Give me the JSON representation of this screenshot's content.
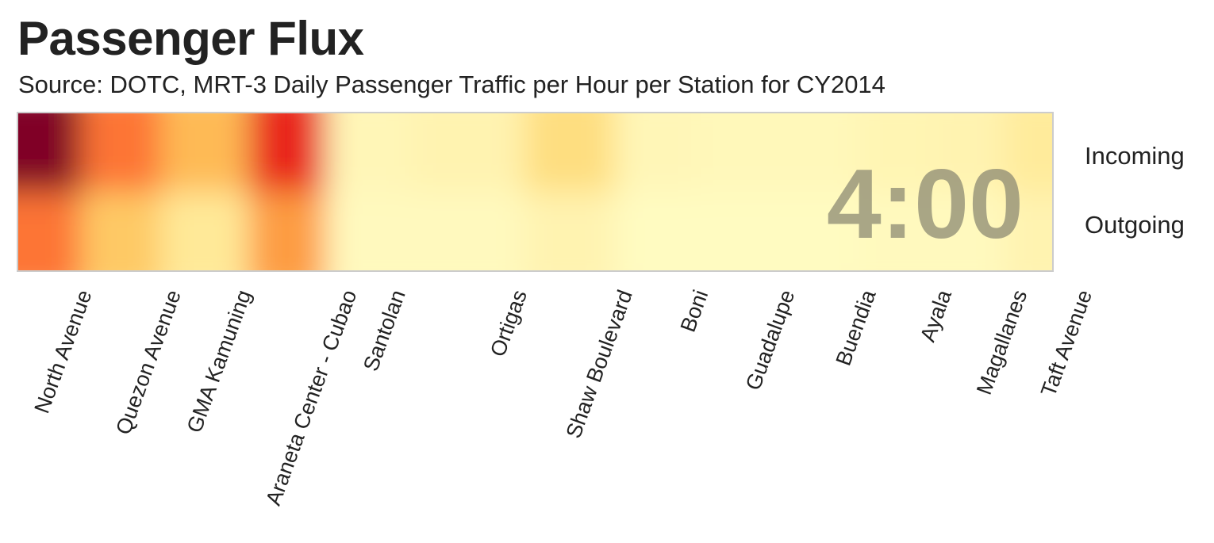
{
  "chart_data": {
    "type": "heatmap",
    "title": "Passenger Flux",
    "subtitle": "Source: DOTC, MRT-3 Daily Passenger Traffic per Hour per Station for CY2014",
    "time_label": "4:00",
    "rows": [
      "Incoming",
      "Outgoing"
    ],
    "categories": [
      "North Avenue",
      "Quezon Avenue",
      "GMA Kamuning",
      "Araneta Center - Cubao",
      "Santolan",
      "Ortigas",
      "Shaw Boulevard",
      "Boni",
      "Guadalupe",
      "Buendia",
      "Ayala",
      "Magallanes",
      "Taft Avenue"
    ],
    "category_positions": [
      0.02,
      0.35,
      0.61,
      1.0,
      1.18,
      1.63,
      2.02,
      2.3,
      2.62,
      2.92,
      3.2,
      3.48,
      3.72
    ],
    "x_range": [
      -0.05,
      3.78
    ],
    "series": [
      {
        "name": "Incoming",
        "values": [
          1.0,
          0.55,
          0.35,
          0.72,
          0.06,
          0.08,
          0.22,
          0.06,
          0.05,
          0.05,
          0.07,
          0.08,
          0.14
        ]
      },
      {
        "name": "Outgoing",
        "values": [
          0.55,
          0.3,
          0.15,
          0.45,
          0.04,
          0.04,
          0.08,
          0.03,
          0.03,
          0.03,
          0.04,
          0.04,
          0.08
        ]
      }
    ],
    "color_scale": {
      "name": "YlOrRd",
      "stops": [
        "#ffffcc",
        "#ffeda0",
        "#fed976",
        "#feb24c",
        "#fd8d3c",
        "#fc4e2a",
        "#e31a1c",
        "#bd0026",
        "#800026"
      ]
    },
    "border_color": "#cccccc",
    "legend_position": "right"
  }
}
